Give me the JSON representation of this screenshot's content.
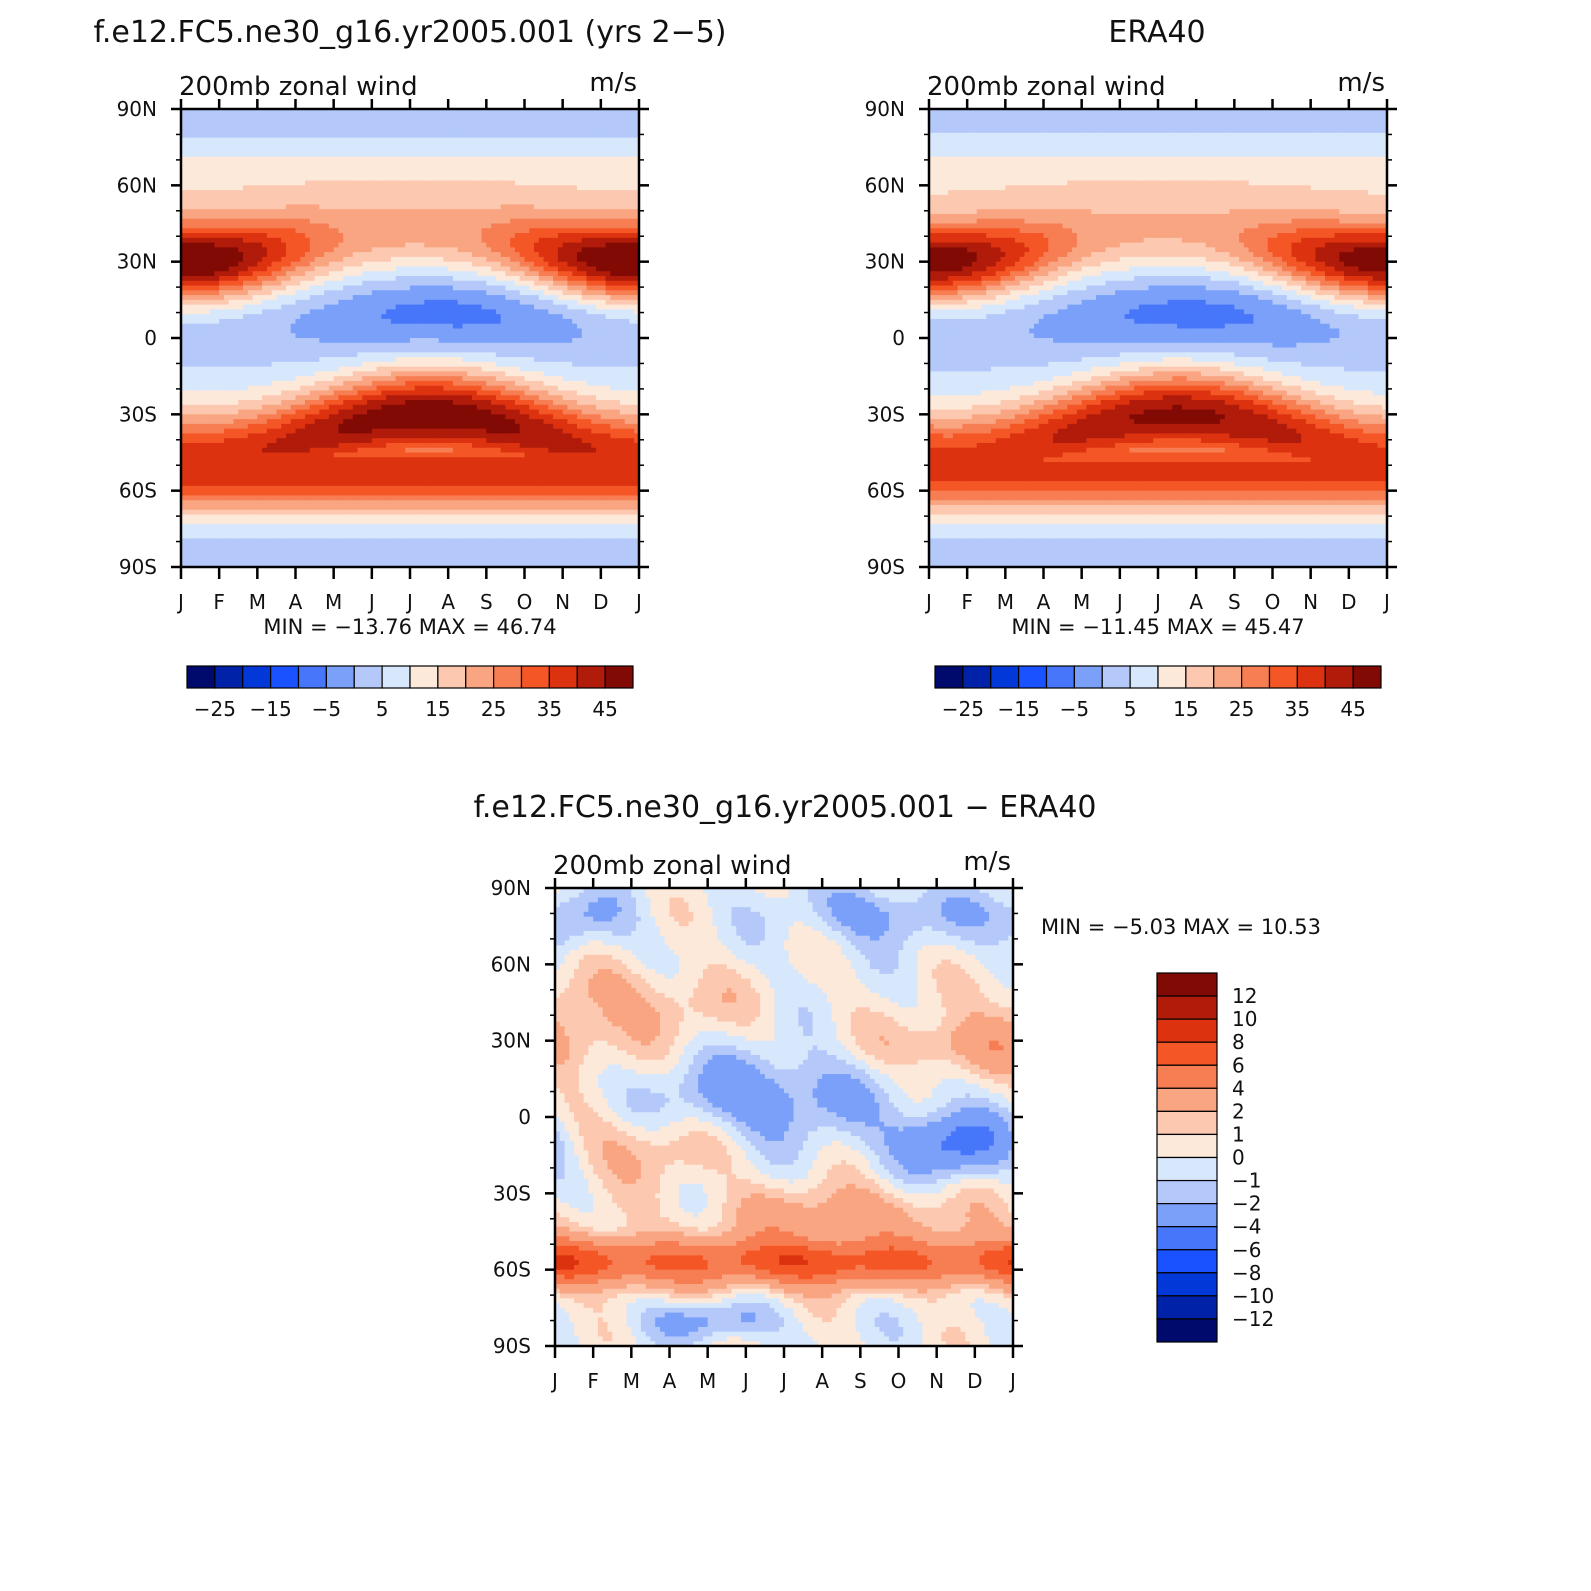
{
  "chart_data": [
    {
      "type": "heatmap",
      "title": "f.e12.FC5.ne30_g16.yr2005.001 (yrs 2-5)",
      "left_label": "200mb  zonal  wind",
      "right_label": "m/s",
      "y_ticklabels": [
        "90N",
        "60N",
        "30N",
        "0",
        "30S",
        "60S",
        "90S"
      ],
      "x_ticklabels": [
        "J",
        "F",
        "M",
        "A",
        "M",
        "J",
        "J",
        "A",
        "S",
        "O",
        "N",
        "D",
        "J"
      ],
      "stats": {
        "min_label": "MIN =",
        "min": "-13.76",
        "max_label": "MAX =",
        "max": "46.74"
      },
      "colorbar": {
        "orientation": "horizontal",
        "levels": [
          -30,
          -25,
          -20,
          -15,
          -10,
          -5,
          0,
          5,
          10,
          15,
          20,
          25,
          30,
          35,
          40,
          45
        ],
        "labels": [
          "-25",
          "-15",
          "-5",
          "5",
          "15",
          "25",
          "35",
          "45"
        ],
        "colors": [
          "#000a6c",
          "#0022a8",
          "#0338d8",
          "#1b52ff",
          "#4776fa",
          "#7aa0fa",
          "#b4c9fa",
          "#d8e8fc",
          "#fde9da",
          "#fcc8b0",
          "#f9a582",
          "#f77d52",
          "#f45626",
          "#dc3210",
          "#b11b0a",
          "#820a05"
        ]
      },
      "features": {
        "nh_jet": {
          "lat": 30,
          "peak": 46.74,
          "strongest_months": [
            "J",
            "F",
            "D"
          ]
        },
        "sh_jet": {
          "lat": -30,
          "peak": 42,
          "strongest_months": [
            "J",
            "J",
            "A"
          ]
        },
        "tropical_easterlies": {
          "lat": 5,
          "min": -13.76,
          "strongest_months": [
            "J",
            "J",
            "A"
          ]
        }
      }
    },
    {
      "type": "heatmap",
      "title": "ERA40",
      "left_label": "200mb  zonal  wind",
      "right_label": "m/s",
      "y_ticklabels": [
        "90N",
        "60N",
        "30N",
        "0",
        "30S",
        "60S",
        "90S"
      ],
      "x_ticklabels": [
        "J",
        "F",
        "M",
        "A",
        "M",
        "J",
        "J",
        "A",
        "S",
        "O",
        "N",
        "D",
        "J"
      ],
      "stats": {
        "min_label": "MIN =",
        "min": "-11.45",
        "max_label": "MAX =",
        "max": "45.47"
      },
      "colorbar": {
        "orientation": "horizontal",
        "levels": [
          -30,
          -25,
          -20,
          -15,
          -10,
          -5,
          0,
          5,
          10,
          15,
          20,
          25,
          30,
          35,
          40,
          45
        ],
        "labels": [
          "-25",
          "-15",
          "-5",
          "5",
          "15",
          "25",
          "35",
          "45"
        ],
        "colors": [
          "#000a6c",
          "#0022a8",
          "#0338d8",
          "#1b52ff",
          "#4776fa",
          "#7aa0fa",
          "#b4c9fa",
          "#d8e8fc",
          "#fde9da",
          "#fcc8b0",
          "#f9a582",
          "#f77d52",
          "#f45626",
          "#dc3210",
          "#b11b0a",
          "#820a05"
        ]
      },
      "features": {
        "nh_jet": {
          "lat": 30,
          "peak": 45.47,
          "strongest_months": [
            "J",
            "F",
            "D"
          ]
        },
        "sh_jet": {
          "lat": -30,
          "peak": 39,
          "strongest_months": [
            "J",
            "J",
            "A"
          ]
        },
        "tropical_easterlies": {
          "lat": 5,
          "min": -11.45,
          "strongest_months": [
            "J",
            "J",
            "A"
          ]
        }
      }
    },
    {
      "type": "heatmap",
      "title": "f.e12.FC5.ne30_g16.yr2005.001 - ERA40",
      "left_label": "200mb  zonal  wind",
      "right_label": "m/s",
      "y_ticklabels": [
        "90N",
        "60N",
        "30N",
        "0",
        "30S",
        "60S",
        "90S"
      ],
      "x_ticklabels": [
        "J",
        "F",
        "M",
        "A",
        "M",
        "J",
        "J",
        "A",
        "S",
        "O",
        "N",
        "D",
        "J"
      ],
      "stats": {
        "min_label": "MIN =",
        "min": "-5.03",
        "max_label": "MAX =",
        "max": "10.53"
      },
      "colorbar": {
        "orientation": "vertical",
        "levels": [
          -12,
          -10,
          -8,
          -6,
          -4,
          -2,
          -1,
          0,
          1,
          2,
          4,
          6,
          8,
          10,
          12
        ],
        "labels": [
          "12",
          "10",
          "8",
          "6",
          "4",
          "2",
          "1",
          "0",
          "-1",
          "-2",
          "-4",
          "-6",
          "-8",
          "-10",
          "-12"
        ],
        "colors": [
          "#000a6c",
          "#0022a8",
          "#0338d8",
          "#1b52ff",
          "#4776fa",
          "#7aa0fa",
          "#b4c9fa",
          "#d8e8fc",
          "#fde9da",
          "#fcc8b0",
          "#f9a582",
          "#f77d52",
          "#f45626",
          "#dc3210",
          "#b11b0a",
          "#820a05"
        ]
      },
      "features": {
        "sh_midlat_positive_band": {
          "lat": -55,
          "peak": 10.53
        },
        "tropical_negative": {
          "lat": 5,
          "min": -5.03
        }
      }
    }
  ]
}
